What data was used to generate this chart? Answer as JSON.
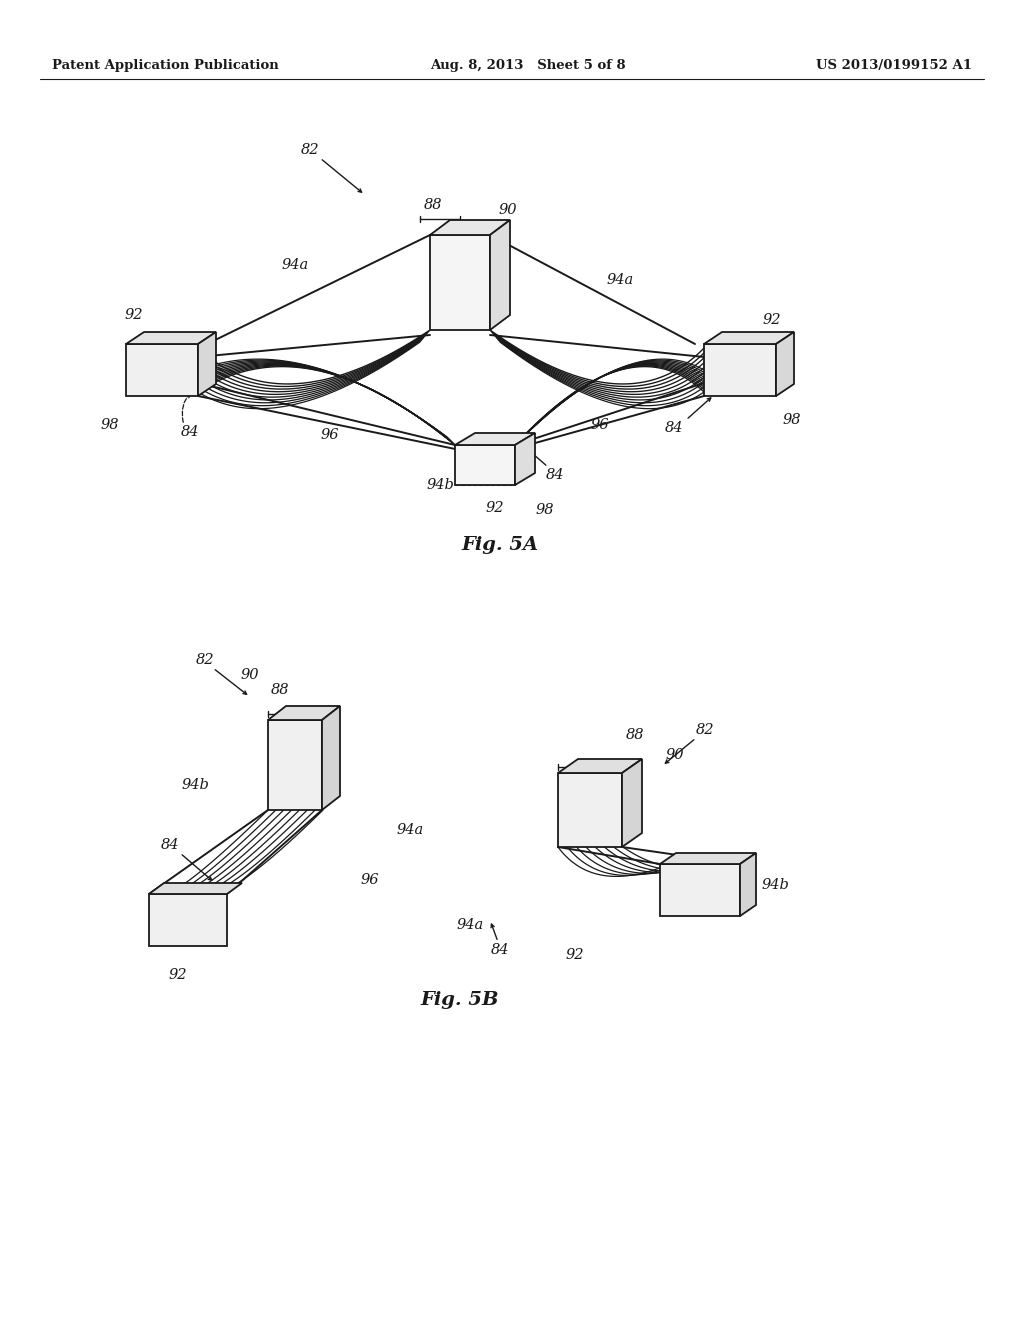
{
  "background_color": "#ffffff",
  "header_left": "Patent Application Publication",
  "header_center": "Aug. 8, 2013   Sheet 5 of 8",
  "header_right": "US 2013/0199152 A1",
  "text_color": "#1a1a1a",
  "line_color": "#1a1a1a",
  "font_size_header": 9.5,
  "font_size_fig_label": 14,
  "font_size_ref": 10.5,
  "fig5a_label": "Fig. 5A",
  "fig5b_label": "Fig. 5B"
}
